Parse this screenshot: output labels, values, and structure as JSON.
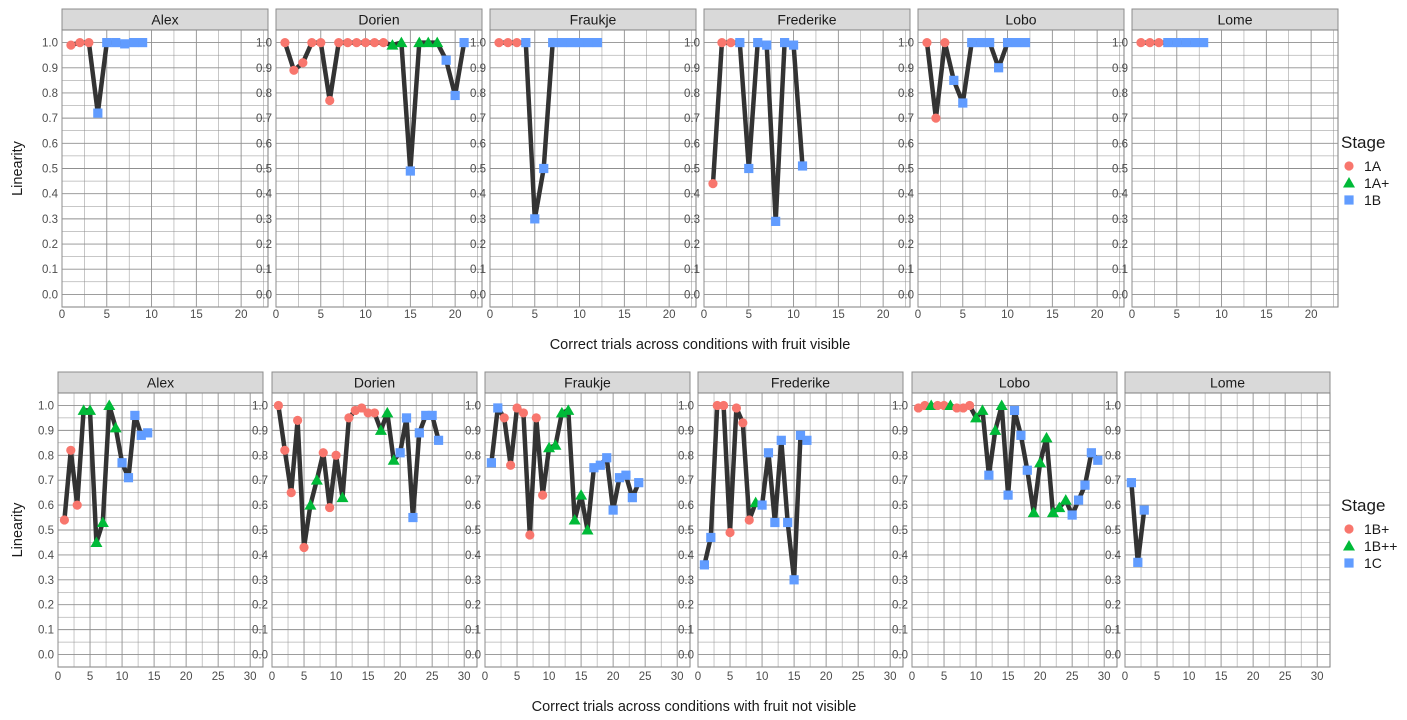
{
  "colors": {
    "1A": "#F8766D",
    "1A+": "#00BA38",
    "1B": "#619CFF",
    "1B+": "#F8766D",
    "1B++": "#00BA38",
    "1C": "#619CFF"
  },
  "shapes": {
    "1A": "circle",
    "1A+": "triangle",
    "1B": "square",
    "1B+": "circle",
    "1B++": "triangle",
    "1C": "square"
  },
  "chart_data": [
    {
      "type": "line",
      "facets": [
        "Alex",
        "Dorien",
        "Fraukje",
        "Frederike",
        "Lobo",
        "Lome"
      ],
      "xlabel": "Correct trials across conditions with fruit visible",
      "ylabel": "Linearity",
      "xlim": [
        0,
        23
      ],
      "xticks": [
        0,
        5,
        10,
        15,
        20
      ],
      "ylim": [
        -0.05,
        1.05
      ],
      "yticks": [
        0.0,
        0.1,
        0.2,
        0.3,
        0.4,
        0.5,
        0.6,
        0.7,
        0.8,
        0.9,
        1.0
      ],
      "legend_title": "Stage",
      "legend": [
        "1A",
        "1A+",
        "1B"
      ],
      "series": [
        {
          "facet": "Alex",
          "points": [
            [
              1,
              0.99,
              "1A"
            ],
            [
              2,
              1.0,
              "1A"
            ],
            [
              3,
              1.0,
              "1A"
            ],
            [
              4,
              0.72,
              "1B"
            ],
            [
              5,
              1.0,
              "1B"
            ],
            [
              6,
              1.0,
              "1B"
            ],
            [
              7,
              0.995,
              "1B"
            ],
            [
              8,
              1.0,
              "1B"
            ],
            [
              9,
              1.0,
              "1B"
            ]
          ]
        },
        {
          "facet": "Dorien",
          "points": [
            [
              1,
              1.0,
              "1A"
            ],
            [
              2,
              0.89,
              "1A"
            ],
            [
              3,
              0.92,
              "1A"
            ],
            [
              4,
              1.0,
              "1A"
            ],
            [
              5,
              1.0,
              "1A"
            ],
            [
              6,
              0.77,
              "1A"
            ],
            [
              7,
              1.0,
              "1A"
            ],
            [
              8,
              1.0,
              "1A"
            ],
            [
              9,
              1.0,
              "1A"
            ],
            [
              10,
              1.0,
              "1A"
            ],
            [
              11,
              1.0,
              "1A"
            ],
            [
              12,
              1.0,
              "1A"
            ],
            [
              13,
              0.99,
              "1A+"
            ],
            [
              14,
              1.0,
              "1A+"
            ],
            [
              15,
              0.49,
              "1B"
            ],
            [
              16,
              1.0,
              "1A+"
            ],
            [
              17,
              1.0,
              "1A+"
            ],
            [
              18,
              1.0,
              "1A+"
            ],
            [
              19,
              0.93,
              "1B"
            ],
            [
              20,
              0.79,
              "1B"
            ],
            [
              21,
              1.0,
              "1B"
            ]
          ]
        },
        {
          "facet": "Fraukje",
          "points": [
            [
              1,
              1.0,
              "1A"
            ],
            [
              2,
              1.0,
              "1A"
            ],
            [
              3,
              1.0,
              "1A"
            ],
            [
              4,
              1.0,
              "1B"
            ],
            [
              5,
              0.3,
              "1B"
            ],
            [
              6,
              0.5,
              "1B"
            ],
            [
              7,
              1.0,
              "1B"
            ],
            [
              8,
              1.0,
              "1B"
            ],
            [
              9,
              1.0,
              "1B"
            ],
            [
              10,
              1.0,
              "1B"
            ],
            [
              11,
              1.0,
              "1B"
            ],
            [
              12,
              1.0,
              "1B"
            ]
          ]
        },
        {
          "facet": "Frederike",
          "points": [
            [
              1,
              0.44,
              "1A"
            ],
            [
              2,
              1.0,
              "1A"
            ],
            [
              3,
              1.0,
              "1A"
            ],
            [
              4,
              1.0,
              "1B"
            ],
            [
              5,
              0.5,
              "1B"
            ],
            [
              6,
              1.0,
              "1B"
            ],
            [
              7,
              0.99,
              "1B"
            ],
            [
              8,
              0.29,
              "1B"
            ],
            [
              9,
              1.0,
              "1B"
            ],
            [
              10,
              0.99,
              "1B"
            ],
            [
              11,
              0.51,
              "1B"
            ]
          ]
        },
        {
          "facet": "Lobo",
          "points": [
            [
              1,
              1.0,
              "1A"
            ],
            [
              2,
              0.7,
              "1A"
            ],
            [
              3,
              1.0,
              "1A"
            ],
            [
              4,
              0.85,
              "1B"
            ],
            [
              5,
              0.76,
              "1B"
            ],
            [
              6,
              1.0,
              "1B"
            ],
            [
              7,
              1.0,
              "1B"
            ],
            [
              8,
              1.0,
              "1B"
            ],
            [
              9,
              0.9,
              "1B"
            ],
            [
              10,
              1.0,
              "1B"
            ],
            [
              11,
              1.0,
              "1B"
            ],
            [
              12,
              1.0,
              "1B"
            ]
          ]
        },
        {
          "facet": "Lome",
          "points": [
            [
              1,
              1.0,
              "1A"
            ],
            [
              2,
              1.0,
              "1A"
            ],
            [
              3,
              1.0,
              "1A"
            ],
            [
              4,
              1.0,
              "1B"
            ],
            [
              5,
              1.0,
              "1B"
            ],
            [
              6,
              1.0,
              "1B"
            ],
            [
              7,
              1.0,
              "1B"
            ],
            [
              8,
              1.0,
              "1B"
            ]
          ]
        }
      ]
    },
    {
      "type": "line",
      "facets": [
        "Alex",
        "Dorien",
        "Fraukje",
        "Frederike",
        "Lobo",
        "Lome"
      ],
      "xlabel": "Correct trials across conditions with fruit not visible",
      "ylabel": "Linearity",
      "xlim": [
        0,
        32
      ],
      "xticks": [
        0,
        5,
        10,
        15,
        20,
        25,
        30
      ],
      "ylim": [
        -0.05,
        1.05
      ],
      "yticks": [
        0.0,
        0.1,
        0.2,
        0.3,
        0.4,
        0.5,
        0.6,
        0.7,
        0.8,
        0.9,
        1.0
      ],
      "legend_title": "Stage",
      "legend": [
        "1B+",
        "1B++",
        "1C"
      ],
      "series": [
        {
          "facet": "Alex",
          "points": [
            [
              1,
              0.54,
              "1B+"
            ],
            [
              2,
              0.82,
              "1B+"
            ],
            [
              3,
              0.6,
              "1B+"
            ],
            [
              4,
              0.98,
              "1B++"
            ],
            [
              5,
              0.98,
              "1B++"
            ],
            [
              6,
              0.45,
              "1B++"
            ],
            [
              7,
              0.53,
              "1B++"
            ],
            [
              8,
              1.0,
              "1B++"
            ],
            [
              9,
              0.91,
              "1B++"
            ],
            [
              10,
              0.77,
              "1C"
            ],
            [
              11,
              0.71,
              "1C"
            ],
            [
              12,
              0.96,
              "1C"
            ],
            [
              13,
              0.88,
              "1C"
            ],
            [
              14,
              0.89,
              "1C"
            ]
          ]
        },
        {
          "facet": "Dorien",
          "points": [
            [
              1,
              1.0,
              "1B+"
            ],
            [
              2,
              0.82,
              "1B+"
            ],
            [
              3,
              0.65,
              "1B+"
            ],
            [
              4,
              0.94,
              "1B+"
            ],
            [
              5,
              0.43,
              "1B+"
            ],
            [
              6,
              0.6,
              "1B++"
            ],
            [
              7,
              0.7,
              "1B++"
            ],
            [
              8,
              0.81,
              "1B+"
            ],
            [
              9,
              0.59,
              "1B+"
            ],
            [
              10,
              0.8,
              "1B+"
            ],
            [
              11,
              0.63,
              "1B++"
            ],
            [
              12,
              0.95,
              "1B+"
            ],
            [
              13,
              0.98,
              "1B+"
            ],
            [
              14,
              0.99,
              "1B+"
            ],
            [
              15,
              0.97,
              "1B+"
            ],
            [
              16,
              0.97,
              "1B+"
            ],
            [
              17,
              0.9,
              "1B++"
            ],
            [
              18,
              0.97,
              "1B++"
            ],
            [
              19,
              0.78,
              "1B++"
            ],
            [
              20,
              0.81,
              "1C"
            ],
            [
              21,
              0.95,
              "1C"
            ],
            [
              22,
              0.55,
              "1C"
            ],
            [
              23,
              0.89,
              "1C"
            ],
            [
              24,
              0.96,
              "1C"
            ],
            [
              25,
              0.96,
              "1C"
            ],
            [
              26,
              0.86,
              "1C"
            ]
          ]
        },
        {
          "facet": "Fraukje",
          "points": [
            [
              1,
              0.77,
              "1C"
            ],
            [
              2,
              0.99,
              "1C"
            ],
            [
              3,
              0.95,
              "1B+"
            ],
            [
              4,
              0.76,
              "1B+"
            ],
            [
              5,
              0.99,
              "1B+"
            ],
            [
              6,
              0.97,
              "1B+"
            ],
            [
              7,
              0.48,
              "1B+"
            ],
            [
              8,
              0.95,
              "1B+"
            ],
            [
              9,
              0.64,
              "1B+"
            ],
            [
              10,
              0.83,
              "1B++"
            ],
            [
              11,
              0.84,
              "1B++"
            ],
            [
              12,
              0.97,
              "1B++"
            ],
            [
              13,
              0.98,
              "1B++"
            ],
            [
              14,
              0.54,
              "1B++"
            ],
            [
              15,
              0.64,
              "1B++"
            ],
            [
              16,
              0.5,
              "1B++"
            ],
            [
              17,
              0.75,
              "1C"
            ],
            [
              18,
              0.76,
              "1C"
            ],
            [
              19,
              0.79,
              "1C"
            ],
            [
              20,
              0.58,
              "1C"
            ],
            [
              21,
              0.71,
              "1C"
            ],
            [
              22,
              0.72,
              "1C"
            ],
            [
              23,
              0.63,
              "1C"
            ],
            [
              24,
              0.69,
              "1C"
            ]
          ]
        },
        {
          "facet": "Frederike",
          "points": [
            [
              1,
              0.36,
              "1C"
            ],
            [
              2,
              0.47,
              "1C"
            ],
            [
              3,
              1.0,
              "1B+"
            ],
            [
              4,
              1.0,
              "1B+"
            ],
            [
              5,
              0.49,
              "1B+"
            ],
            [
              6,
              0.99,
              "1B+"
            ],
            [
              7,
              0.93,
              "1B+"
            ],
            [
              8,
              0.54,
              "1B+"
            ],
            [
              9,
              0.61,
              "1B++"
            ],
            [
              10,
              0.6,
              "1C"
            ],
            [
              11,
              0.81,
              "1C"
            ],
            [
              12,
              0.53,
              "1C"
            ],
            [
              13,
              0.86,
              "1C"
            ],
            [
              14,
              0.53,
              "1C"
            ],
            [
              15,
              0.3,
              "1C"
            ],
            [
              16,
              0.88,
              "1C"
            ],
            [
              17,
              0.86,
              "1C"
            ]
          ]
        },
        {
          "facet": "Lobo",
          "points": [
            [
              1,
              0.99,
              "1B+"
            ],
            [
              2,
              1.0,
              "1B+"
            ],
            [
              3,
              1.0,
              "1B++"
            ],
            [
              4,
              1.0,
              "1B+"
            ],
            [
              5,
              1.0,
              "1B+"
            ],
            [
              6,
              1.0,
              "1B++"
            ],
            [
              7,
              0.99,
              "1B+"
            ],
            [
              8,
              0.99,
              "1B+"
            ],
            [
              9,
              1.0,
              "1B+"
            ],
            [
              10,
              0.95,
              "1B++"
            ],
            [
              11,
              0.98,
              "1B++"
            ],
            [
              12,
              0.72,
              "1C"
            ],
            [
              13,
              0.9,
              "1B++"
            ],
            [
              14,
              1.0,
              "1B++"
            ],
            [
              15,
              0.64,
              "1C"
            ],
            [
              16,
              0.98,
              "1C"
            ],
            [
              17,
              0.88,
              "1C"
            ],
            [
              18,
              0.74,
              "1C"
            ],
            [
              19,
              0.57,
              "1B++"
            ],
            [
              20,
              0.77,
              "1B++"
            ],
            [
              21,
              0.87,
              "1B++"
            ],
            [
              22,
              0.57,
              "1B++"
            ],
            [
              23,
              0.59,
              "1B++"
            ],
            [
              24,
              0.62,
              "1B++"
            ],
            [
              25,
              0.56,
              "1C"
            ],
            [
              26,
              0.62,
              "1C"
            ],
            [
              27,
              0.68,
              "1C"
            ],
            [
              28,
              0.81,
              "1C"
            ],
            [
              29,
              0.78,
              "1C"
            ]
          ]
        },
        {
          "facet": "Lome",
          "points": [
            [
              1,
              0.69,
              "1C"
            ],
            [
              2,
              0.37,
              "1C"
            ],
            [
              3,
              0.58,
              "1C"
            ]
          ]
        }
      ]
    }
  ]
}
